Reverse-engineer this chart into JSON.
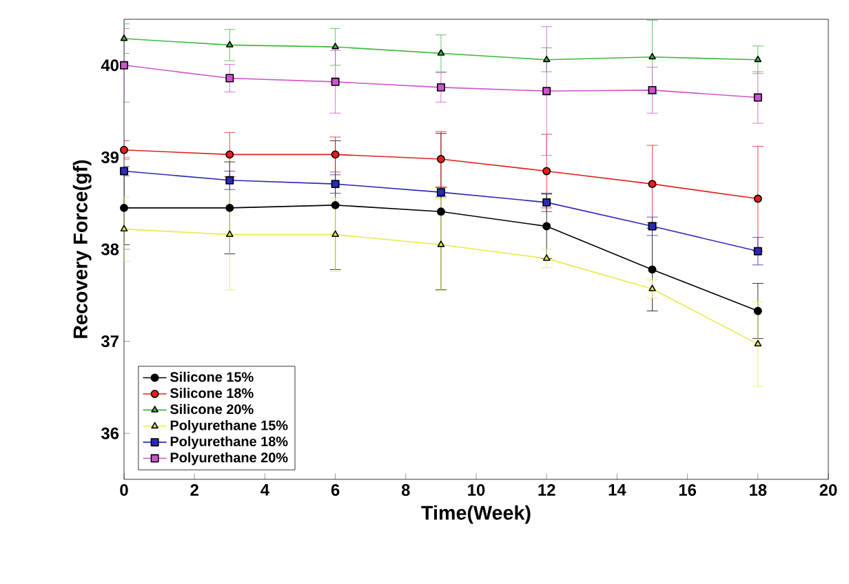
{
  "chart_data": {
    "type": "line",
    "xlabel": "Time(Week)",
    "ylabel": "Recovery Force(gf)",
    "x": [
      0,
      3,
      6,
      9,
      12,
      15,
      18
    ],
    "series": [
      {
        "name": "Silicone 15%",
        "color": "#000000",
        "marker": "circle",
        "values": [
          38.45,
          38.45,
          38.48,
          38.41,
          38.25,
          37.78,
          37.33
        ],
        "errors": [
          0.4,
          0.5,
          0.7,
          0.85,
          0.35,
          0.45,
          0.3
        ]
      },
      {
        "name": "Silicone 18%",
        "color": "#e0201b",
        "marker": "circle",
        "values": [
          39.08,
          39.03,
          39.03,
          38.98,
          38.85,
          38.71,
          38.55
        ],
        "errors": [
          0.1,
          0.24,
          0.19,
          0.3,
          0.4,
          0.42,
          0.57
        ]
      },
      {
        "name": "Silicone 20%",
        "color": "#3cb93c",
        "marker": "triangle",
        "values": [
          40.29,
          40.22,
          40.2,
          40.13,
          40.06,
          40.09,
          40.06
        ],
        "errors": [
          0.16,
          0.17,
          0.2,
          0.2,
          0.13,
          0.4,
          0.15
        ]
      },
      {
        "name": "Polyurethane 15%",
        "color": "#e8e84a",
        "marker": "triangle",
        "values": [
          38.22,
          38.16,
          38.16,
          38.05,
          37.9,
          37.57,
          36.97
        ],
        "errors": [
          0.35,
          0.6,
          0.4,
          0.5,
          0.1,
          0.1,
          0.46
        ]
      },
      {
        "name": "Polyurethane 18%",
        "color": "#2a2ab5",
        "marker": "square",
        "values": [
          38.85,
          38.75,
          38.71,
          38.62,
          38.51,
          38.25,
          37.98
        ],
        "errors": [
          0.05,
          0.1,
          0.1,
          0.05,
          0.1,
          0.1,
          0.15
        ]
      },
      {
        "name": "Polyurethane 20%",
        "color": "#cc55cc",
        "marker": "square",
        "values": [
          40.0,
          39.86,
          39.82,
          39.76,
          39.72,
          39.73,
          39.65
        ],
        "errors": [
          0.4,
          0.15,
          0.34,
          0.16,
          0.7,
          0.25,
          0.28
        ]
      }
    ],
    "xlim": [
      0,
      20
    ],
    "ylim": [
      35.5,
      40.5
    ],
    "xticks": [
      0,
      2,
      4,
      6,
      8,
      10,
      12,
      14,
      16,
      18,
      20
    ],
    "yticks": [
      36,
      37,
      38,
      39,
      40
    ],
    "grid": false,
    "legend": "bottom left",
    "line_style": "solid"
  }
}
